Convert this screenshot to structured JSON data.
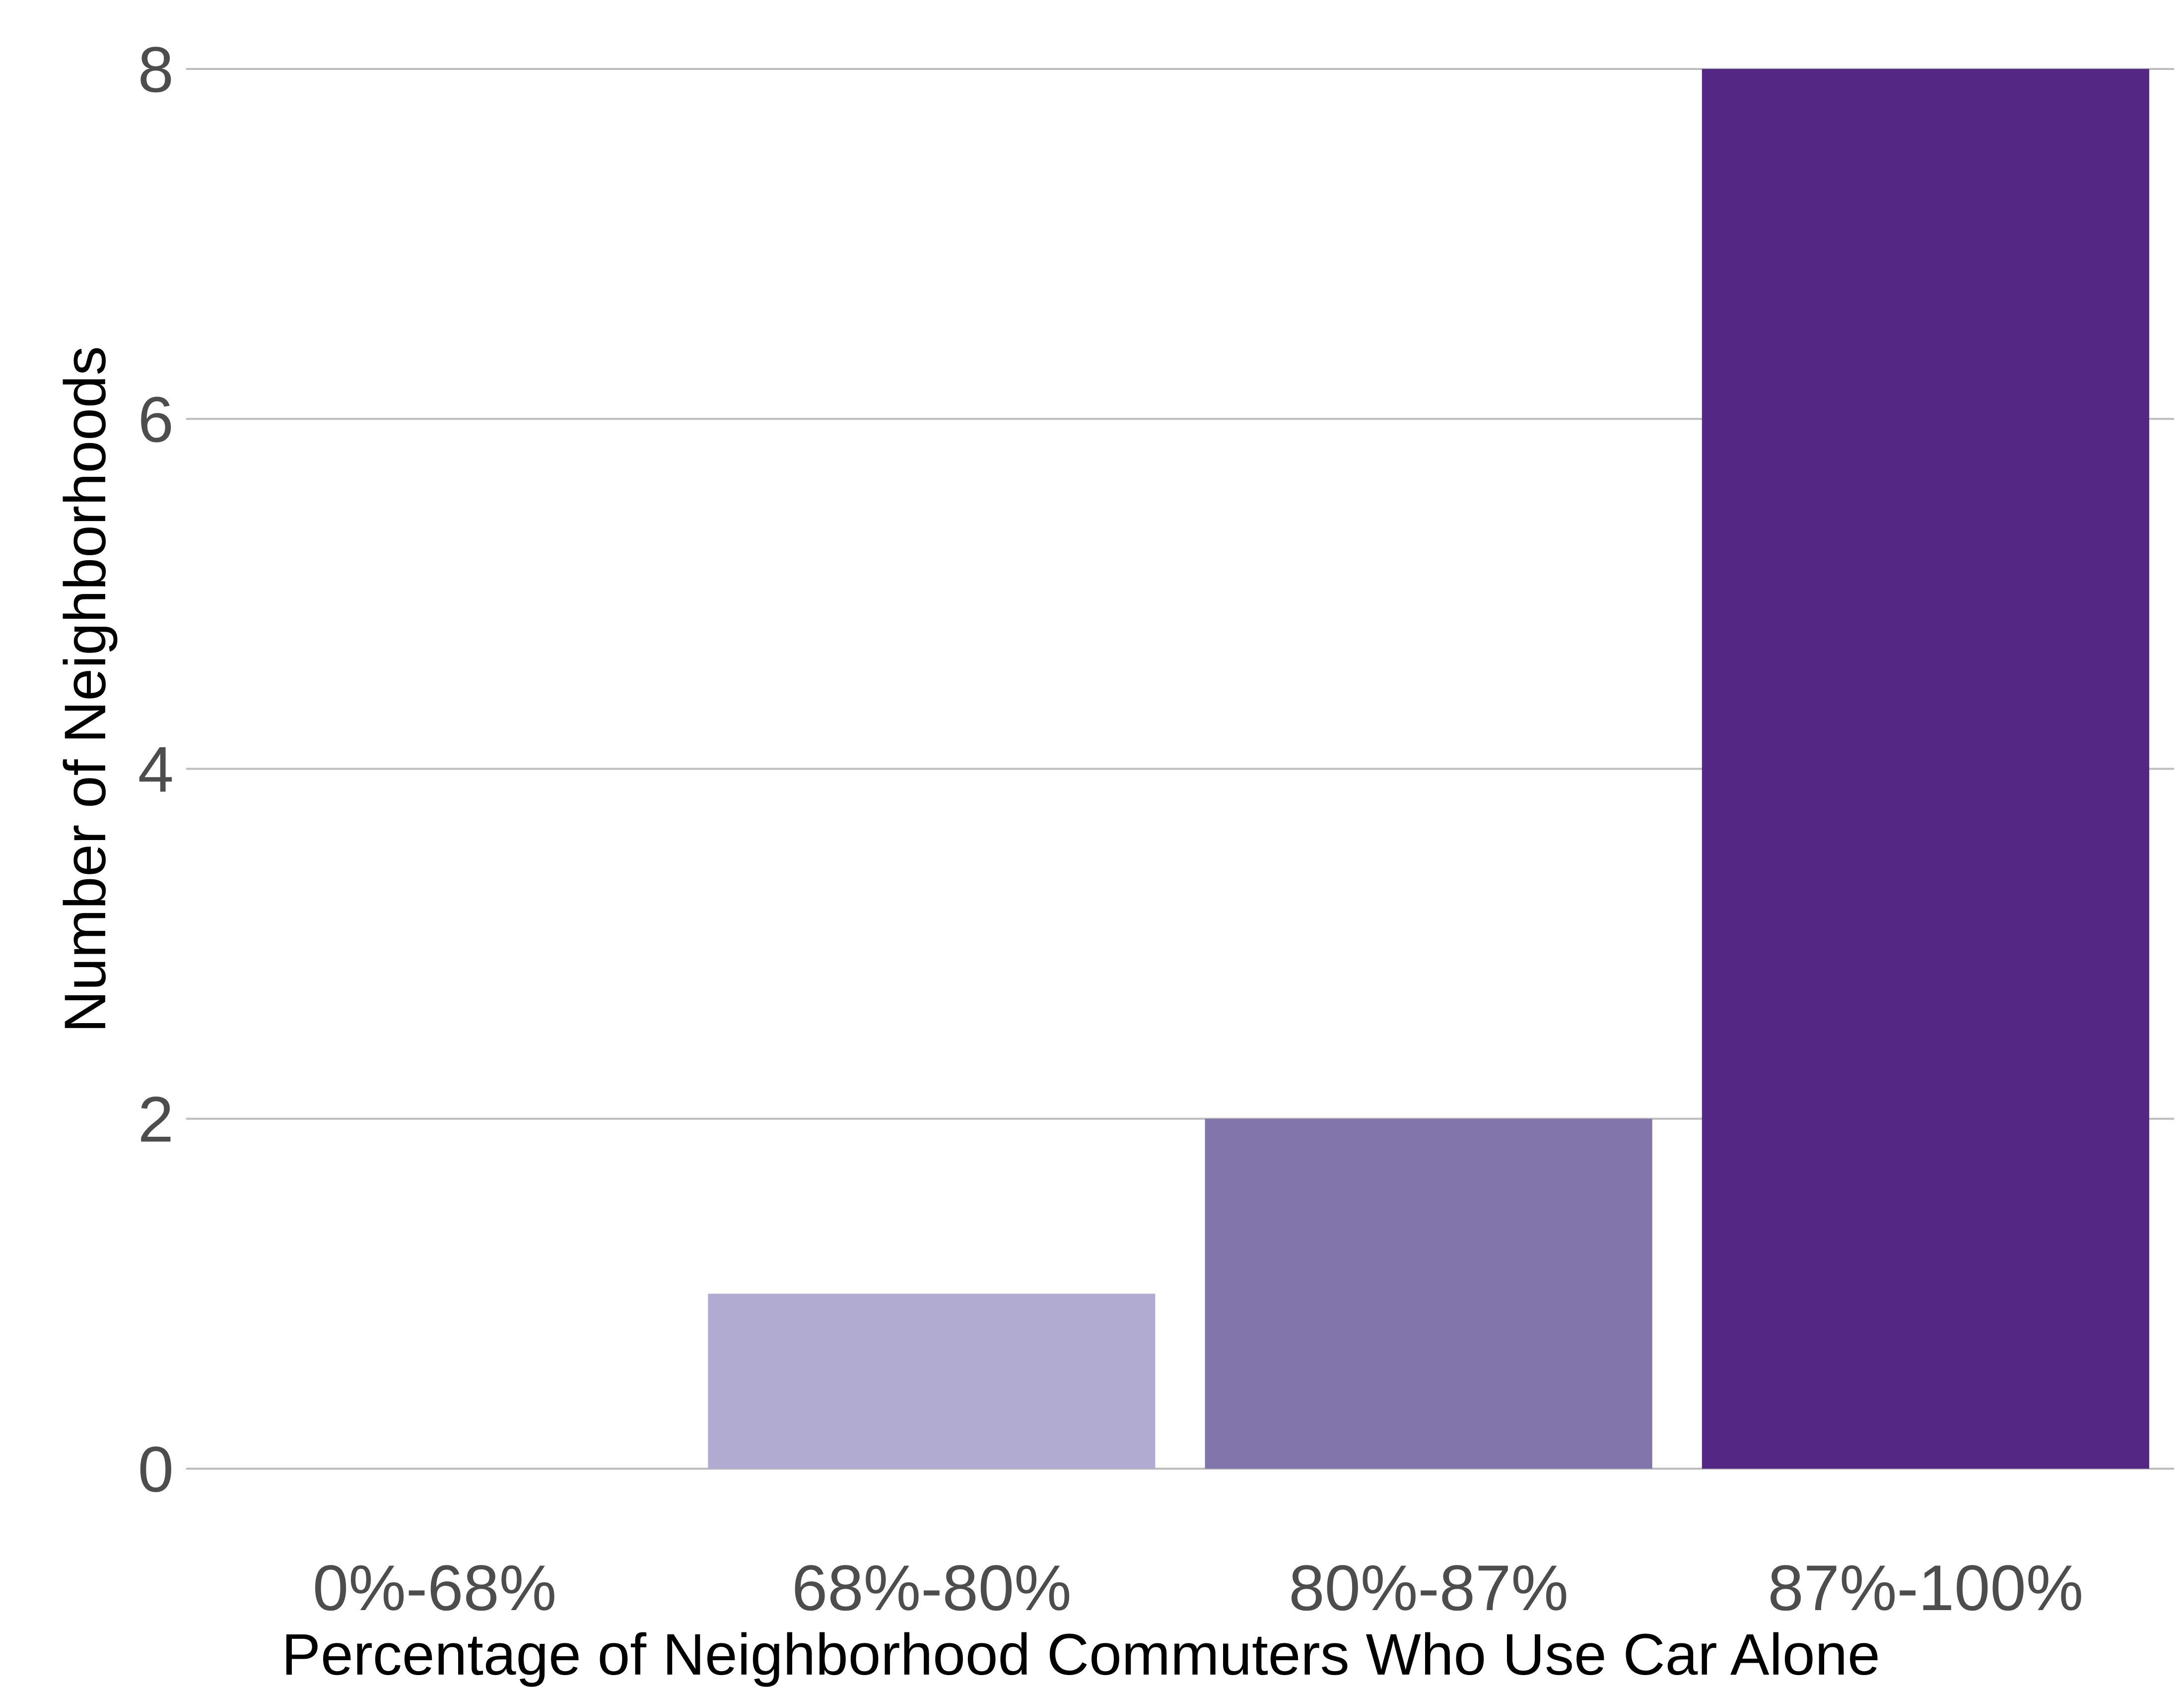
{
  "chart_data": {
    "type": "bar",
    "categories": [
      "0%-68%",
      "68%-80%",
      "80%-87%",
      "87%-100%"
    ],
    "values": [
      0,
      1,
      2,
      8
    ],
    "colors": [
      "#f2f0f7",
      "#b1abd2",
      "#8175ab",
      "#542785"
    ],
    "xlabel": "Percentage of Neighborhood Commuters Who Use Car Alone",
    "ylabel": "Number of Neighborhoods",
    "ylim": [
      0,
      8
    ],
    "yticks": [
      "0",
      "2",
      "4",
      "6",
      "8"
    ],
    "grid": "horizontal",
    "legend": "none"
  }
}
